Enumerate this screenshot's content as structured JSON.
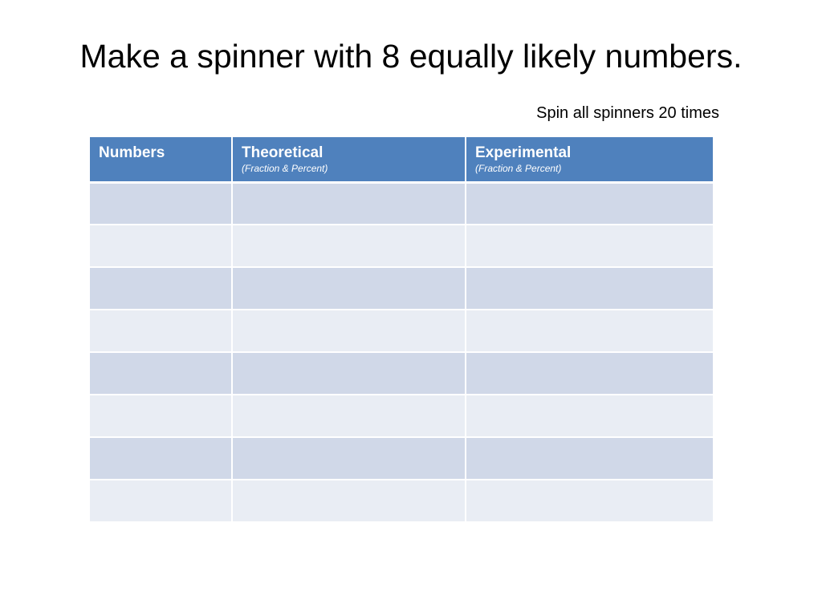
{
  "title": "Make a spinner with 8 equally likely numbers.",
  "subtitle": "Spin all spinners 20 times",
  "colors": {
    "header": "#4f81bd",
    "row_dark": "#d0d8e8",
    "row_light": "#e9edf4"
  },
  "table": {
    "headers": [
      {
        "main": "Numbers",
        "sub": ""
      },
      {
        "main": "Theoretical",
        "sub": "(Fraction & Percent)"
      },
      {
        "main": "Experimental",
        "sub": "(Fraction & Percent)"
      }
    ],
    "rows": [
      [
        "",
        "",
        ""
      ],
      [
        "",
        "",
        ""
      ],
      [
        "",
        "",
        ""
      ],
      [
        "",
        "",
        ""
      ],
      [
        "",
        "",
        ""
      ],
      [
        "",
        "",
        ""
      ],
      [
        "",
        "",
        ""
      ],
      [
        "",
        "",
        ""
      ]
    ]
  }
}
